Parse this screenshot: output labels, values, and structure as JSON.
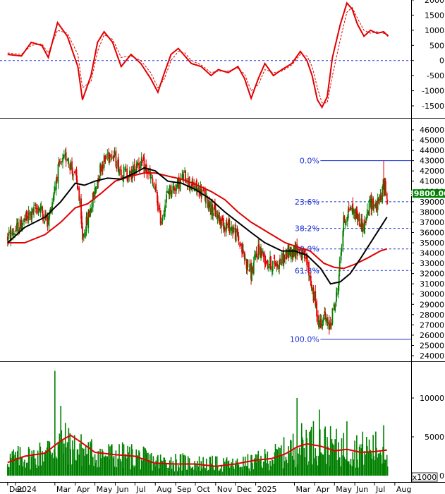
{
  "chart_data": [
    {
      "type": "line",
      "panel": "oscillator",
      "grid": false,
      "baseline": 0,
      "ylim": [
        -1800,
        2100
      ],
      "yticks": [
        "2000",
        "1500",
        "1000",
        "500",
        "0",
        "-500",
        "-1000",
        "-1500"
      ],
      "series": [
        {
          "color": "#e00000",
          "x": [
            "2023-12-20",
            "2024-01-10",
            "2024-01-25",
            "2024-02-10",
            "2024-02-20",
            "2024-03-05",
            "2024-03-20",
            "2024-04-05",
            "2024-04-12",
            "2024-04-25",
            "2024-05-05",
            "2024-05-15",
            "2024-05-28",
            "2024-06-10",
            "2024-06-25",
            "2024-07-10",
            "2024-07-25",
            "2024-08-05",
            "2024-08-15",
            "2024-08-25",
            "2024-09-05",
            "2024-09-15",
            "2024-09-25",
            "2024-10-10",
            "2024-10-25",
            "2024-11-05",
            "2024-11-20",
            "2024-12-05",
            "2024-12-15",
            "2024-12-25",
            "2025-01-05",
            "2025-01-15",
            "2025-01-28",
            "2025-02-10",
            "2025-02-25",
            "2025-03-10",
            "2025-03-20",
            "2025-03-28",
            "2025-04-05",
            "2025-04-12",
            "2025-04-20",
            "2025-04-28",
            "2025-05-10",
            "2025-05-20",
            "2025-05-28",
            "2025-06-05",
            "2025-06-15",
            "2025-06-25",
            "2025-07-05",
            "2025-07-15",
            "2025-07-22"
          ],
          "values": [
            200,
            150,
            600,
            500,
            100,
            1250,
            800,
            -200,
            -1300,
            -500,
            600,
            950,
            600,
            -200,
            200,
            -100,
            -600,
            -1050,
            -400,
            200,
            400,
            150,
            -100,
            -200,
            -500,
            -300,
            -400,
            -200,
            -600,
            -1250,
            -600,
            -100,
            -500,
            -300,
            -100,
            300,
            0,
            -500,
            -1300,
            -1550,
            -1200,
            100,
            1200,
            1900,
            1700,
            1200,
            800,
            1000,
            900,
            950,
            800
          ]
        },
        {
          "color": "#e00000",
          "dashed": true,
          "x": [
            "2023-12-20",
            "2024-01-10",
            "2024-01-25",
            "2024-02-10",
            "2024-02-20",
            "2024-03-05",
            "2024-03-20",
            "2024-04-05",
            "2024-04-12",
            "2024-04-25",
            "2024-05-05",
            "2024-05-15",
            "2024-05-28",
            "2024-06-10",
            "2024-06-25",
            "2024-07-10",
            "2024-07-25",
            "2024-08-05",
            "2024-08-15",
            "2024-08-25",
            "2024-09-05",
            "2024-09-15",
            "2024-09-25",
            "2024-10-10",
            "2024-10-25",
            "2024-11-05",
            "2024-11-20",
            "2024-12-05",
            "2024-12-15",
            "2024-12-25",
            "2025-01-05",
            "2025-01-15",
            "2025-01-28",
            "2025-02-10",
            "2025-02-25",
            "2025-03-10",
            "2025-03-20",
            "2025-03-28",
            "2025-04-05",
            "2025-04-12",
            "2025-04-20",
            "2025-04-28",
            "2025-05-10",
            "2025-05-20",
            "2025-05-28",
            "2025-06-05",
            "2025-06-15",
            "2025-06-25",
            "2025-07-05",
            "2025-07-15",
            "2025-07-22"
          ],
          "values": [
            250,
            200,
            500,
            550,
            250,
            1000,
            900,
            200,
            -900,
            -700,
            300,
            850,
            700,
            100,
            150,
            0,
            -400,
            -900,
            -600,
            0,
            300,
            250,
            0,
            -150,
            -400,
            -350,
            -350,
            -250,
            -450,
            -1000,
            -800,
            -300,
            -400,
            -350,
            -150,
            200,
            150,
            -200,
            -900,
            -1400,
            -1400,
            -500,
            700,
            1600,
            1750,
            1400,
            1000,
            900,
            950,
            900,
            850
          ]
        }
      ]
    },
    {
      "type": "candlestick",
      "panel": "price",
      "grid": false,
      "ylim": [
        23500,
        46800
      ],
      "yticks": [
        "46000",
        "45000",
        "44000",
        "43000",
        "42000",
        "41000",
        "40000",
        "39000",
        "38000",
        "37000",
        "36000",
        "35000",
        "34000",
        "33000",
        "32000",
        "31000",
        "30000",
        "29000",
        "28000",
        "27000",
        "26000",
        "25000",
        "24000"
      ],
      "last_price_label": "39800.00",
      "last_price": 39800,
      "up_color": "#008000",
      "down_color": "#e00000",
      "closes": {
        "x": [
          "2023-12-20",
          "2024-01-05",
          "2024-01-20",
          "2024-02-05",
          "2024-02-20",
          "2024-03-05",
          "2024-03-20",
          "2024-04-05",
          "2024-04-12",
          "2024-04-25",
          "2024-05-10",
          "2024-05-25",
          "2024-06-10",
          "2024-06-25",
          "2024-07-05",
          "2024-07-20",
          "2024-08-01",
          "2024-08-10",
          "2024-08-20",
          "2024-09-01",
          "2024-09-15",
          "2024-09-25",
          "2024-10-10",
          "2024-10-25",
          "2024-11-10",
          "2024-11-25",
          "2024-12-05",
          "2024-12-15",
          "2024-12-25",
          "2025-01-05",
          "2025-01-20",
          "2025-02-05",
          "2025-02-20",
          "2025-03-05",
          "2025-03-20",
          "2025-03-28",
          "2025-04-08",
          "2025-04-15",
          "2025-04-22",
          "2025-05-05",
          "2025-05-15",
          "2025-05-25",
          "2025-06-05",
          "2025-06-15",
          "2025-06-25",
          "2025-07-05",
          "2025-07-15",
          "2025-07-20"
        ],
        "values": [
          35500,
          36500,
          37500,
          38500,
          37000,
          42000,
          43500,
          40500,
          35500,
          38500,
          42500,
          44000,
          42000,
          41500,
          43000,
          42000,
          40000,
          37000,
          40000,
          40500,
          41500,
          40500,
          40000,
          38500,
          37000,
          36500,
          35500,
          33500,
          32000,
          34500,
          33000,
          33000,
          34000,
          34500,
          33000,
          30500,
          27000,
          28000,
          26500,
          30000,
          37000,
          38500,
          37500,
          36500,
          39000,
          38500,
          40500,
          39800
        ]
      },
      "ma_short": {
        "color": "#000000",
        "x": [
          "2023-12-20",
          "2024-01-15",
          "2024-02-15",
          "2024-03-10",
          "2024-04-01",
          "2024-04-15",
          "2024-05-01",
          "2024-05-20",
          "2024-06-10",
          "2024-07-01",
          "2024-07-15",
          "2024-08-01",
          "2024-08-20",
          "2024-09-10",
          "2024-10-01",
          "2024-10-25",
          "2024-11-15",
          "2024-12-05",
          "2024-12-25",
          "2025-01-15",
          "2025-02-10",
          "2025-03-01",
          "2025-03-20",
          "2025-04-10",
          "2025-04-25",
          "2025-05-10",
          "2025-05-25",
          "2025-06-10",
          "2025-06-25",
          "2025-07-10",
          "2025-07-20"
        ],
        "values": [
          35000,
          36500,
          37500,
          39000,
          40800,
          40600,
          41000,
          41300,
          41200,
          41800,
          42300,
          42000,
          41000,
          40800,
          40200,
          39200,
          38000,
          37000,
          36000,
          35000,
          34200,
          34200,
          33800,
          32500,
          31000,
          31200,
          32000,
          33500,
          35000,
          36500,
          37500
        ]
      },
      "ma_long": {
        "color": "#e00000",
        "x": [
          "2023-12-20",
          "2024-01-15",
          "2024-02-15",
          "2024-03-10",
          "2024-04-01",
          "2024-04-20",
          "2024-05-10",
          "2024-06-01",
          "2024-06-25",
          "2024-07-15",
          "2024-08-01",
          "2024-08-20",
          "2024-09-10",
          "2024-10-01",
          "2024-10-25",
          "2024-11-15",
          "2024-12-05",
          "2024-12-25",
          "2025-01-20",
          "2025-02-15",
          "2025-03-10",
          "2025-03-25",
          "2025-04-15",
          "2025-05-01",
          "2025-05-15",
          "2025-06-01",
          "2025-06-20",
          "2025-07-10",
          "2025-07-20"
        ],
        "values": [
          35000,
          35000,
          35800,
          37000,
          38400,
          38800,
          39800,
          41000,
          41500,
          41800,
          41800,
          41500,
          41200,
          40700,
          40000,
          39200,
          38000,
          37000,
          36000,
          35000,
          34500,
          34200,
          33000,
          32600,
          32500,
          32900,
          33500,
          34200,
          34400
        ]
      },
      "fibonacci": [
        {
          "label": "0.0%",
          "value": 43000,
          "dashed": false
        },
        {
          "label": "23.6%",
          "value": 39000,
          "dashed": true
        },
        {
          "label": "38.2%",
          "value": 36400,
          "dashed": true
        },
        {
          "label": "50.0%",
          "value": 34400,
          "dashed": true
        },
        {
          "label": "61.8%",
          "value": 32300,
          "dashed": true
        },
        {
          "label": "100.0%",
          "value": 25600,
          "dashed": false
        }
      ]
    },
    {
      "type": "bar",
      "panel": "volume",
      "grid": false,
      "unit_label": "x1000",
      "ylim": [
        0,
        14500
      ],
      "yticks": [
        "10000",
        "5000",
        "0"
      ],
      "bar_color": "#008000",
      "ma_color": "#e00000",
      "volume_profile": {
        "x": [
          "2023-12-20",
          "2024-02-01",
          "2024-03-01",
          "2024-03-15",
          "2024-04-01",
          "2024-05-01",
          "2024-06-01",
          "2024-07-01",
          "2024-08-01",
          "2024-09-01",
          "2024-10-01",
          "2024-11-01",
          "2024-12-01",
          "2025-01-01",
          "2025-02-01",
          "2025-03-01",
          "2025-03-20",
          "2025-04-10",
          "2025-05-01",
          "2025-06-01",
          "2025-07-01",
          "2025-07-20"
        ],
        "values": [
          2200,
          2500,
          3800,
          4200,
          3500,
          2800,
          2600,
          2500,
          1800,
          1800,
          1600,
          1500,
          1400,
          1800,
          2500,
          3500,
          4500,
          4200,
          3600,
          3400,
          3500,
          3200
        ]
      },
      "spikes": [
        {
          "x": "2024-03-01",
          "value": 13500
        },
        {
          "x": "2024-03-10",
          "value": 9000
        },
        {
          "x": "2025-03-05",
          "value": 10000
        },
        {
          "x": "2025-04-08",
          "value": 8500
        },
        {
          "x": "2025-05-20",
          "value": 7000
        },
        {
          "x": "2025-07-15",
          "value": 6500
        }
      ],
      "ma": {
        "x": [
          "2023-12-20",
          "2024-01-15",
          "2024-02-15",
          "2024-03-10",
          "2024-03-25",
          "2024-04-10",
          "2024-05-01",
          "2024-06-01",
          "2024-07-01",
          "2024-08-01",
          "2024-09-01",
          "2024-10-01",
          "2024-11-01",
          "2024-12-01",
          "2025-01-01",
          "2025-01-25",
          "2025-02-15",
          "2025-03-05",
          "2025-03-20",
          "2025-04-10",
          "2025-05-01",
          "2025-05-20",
          "2025-06-10",
          "2025-07-01",
          "2025-07-20"
        ],
        "values": [
          1700,
          2500,
          2900,
          4500,
          5200,
          4300,
          3000,
          2700,
          2500,
          1600,
          1500,
          1500,
          1200,
          1500,
          2000,
          2200,
          2800,
          3700,
          4100,
          3800,
          3200,
          3400,
          3000,
          3100,
          3300
        ]
      }
    }
  ],
  "x_axis": {
    "labels": [
      {
        "text": "Dec",
        "date": "2023-12-20"
      },
      {
        "text": "2024",
        "date": "2024-01-01"
      },
      {
        "text": "Mar",
        "date": "2024-03-01"
      },
      {
        "text": "Apr",
        "date": "2024-04-01"
      },
      {
        "text": "May",
        "date": "2024-05-01"
      },
      {
        "text": "Jun",
        "date": "2024-06-01"
      },
      {
        "text": "Jul",
        "date": "2024-07-01"
      },
      {
        "text": "Aug",
        "date": "2024-08-01"
      },
      {
        "text": "Sep",
        "date": "2024-09-01"
      },
      {
        "text": "Oct",
        "date": "2024-10-01"
      },
      {
        "text": "Nov",
        "date": "2024-11-01"
      },
      {
        "text": "Dec",
        "date": "2024-12-01"
      },
      {
        "text": "2025",
        "date": "2025-01-01"
      },
      {
        "text": "Mar",
        "date": "2025-03-01"
      },
      {
        "text": "Apr",
        "date": "2025-04-01"
      },
      {
        "text": "May",
        "date": "2025-05-01"
      },
      {
        "text": "Jun",
        "date": "2025-06-01"
      },
      {
        "text": "Jul",
        "date": "2025-07-01"
      },
      {
        "text": "Aug",
        "date": "2025-08-01"
      }
    ]
  }
}
